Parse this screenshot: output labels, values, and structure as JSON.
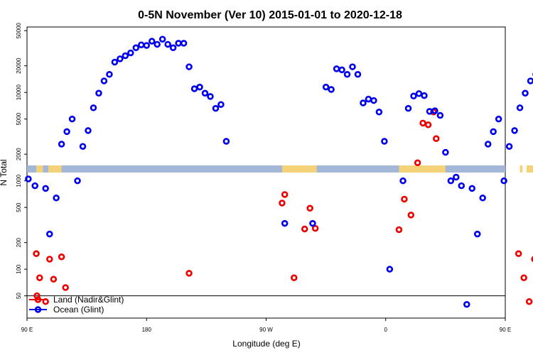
{
  "chart_data": {
    "type": "scatter",
    "title": "0-5N November (Ver 10)   2015-01-01 to 2020-12-18",
    "xlabel": "Longitude (deg E)",
    "ylabel": "N Total",
    "x_range_deg_e": [
      90,
      450
    ],
    "y_range": [
      28,
      55000
    ],
    "y_scale": "log",
    "x_ticks": [
      {
        "value": 90,
        "label": "90 E"
      },
      {
        "value": 180,
        "label": "180"
      },
      {
        "value": 270,
        "label": "90 W"
      },
      {
        "value": 360,
        "label": "0"
      },
      {
        "value": 450,
        "label": "90 E"
      },
      {
        "value": 540,
        "label": "180"
      }
    ],
    "y_ticks": [
      {
        "value": 50,
        "label": "50"
      },
      {
        "value": 100,
        "label": "100"
      },
      {
        "value": 200,
        "label": "200"
      },
      {
        "value": 500,
        "label": "500"
      },
      {
        "value": 1000,
        "label": "1000"
      },
      {
        "value": 2000,
        "label": "2000"
      },
      {
        "value": 5000,
        "label": "5000"
      },
      {
        "value": 10000,
        "label": "10000"
      },
      {
        "value": 20000,
        "label": "20000"
      },
      {
        "value": 50000,
        "label": "50000"
      }
    ],
    "reference_line_y": 50,
    "land_band": {
      "color_ocean": "#a3b8d8",
      "color_land": "#f5d27a",
      "land_segments_deg_e": [
        [
          97,
          102
        ],
        [
          106,
          116
        ],
        [
          282,
          308
        ],
        [
          370,
          405
        ],
        [
          461,
          463
        ],
        [
          466,
          472
        ],
        [
          474,
          476
        ]
      ]
    },
    "legend_position": "bottom-left",
    "series": [
      {
        "name": "Land (Nadir&Glint)",
        "color": "#ee0000",
        "points": [
          [
            97,
            150
          ],
          [
            97.5,
            50
          ],
          [
            99.5,
            80
          ],
          [
            104,
            43
          ],
          [
            107,
            130
          ],
          [
            110,
            77
          ],
          [
            116,
            138
          ],
          [
            119,
            62
          ],
          [
            212,
            90
          ],
          [
            282,
            560
          ],
          [
            284,
            700
          ],
          [
            291,
            80
          ],
          [
            299,
            285
          ],
          [
            303,
            490
          ],
          [
            307,
            290
          ],
          [
            370,
            280
          ],
          [
            374,
            620
          ],
          [
            379,
            410
          ],
          [
            384,
            1600
          ],
          [
            388,
            4500
          ],
          [
            392,
            4300
          ],
          [
            396,
            6000
          ],
          [
            398,
            3000
          ],
          [
            460,
            150
          ],
          [
            464,
            80
          ],
          [
            468,
            43
          ],
          [
            472,
            130
          ],
          [
            476,
            77
          ],
          [
            480,
            138
          ],
          [
            484,
            62
          ]
        ]
      },
      {
        "name": "Ocean (Glint)",
        "color": "#0000ee",
        "points": [
          [
            91,
            1050
          ],
          [
            96,
            880
          ],
          [
            104,
            820
          ],
          [
            107,
            250
          ],
          [
            112,
            640
          ],
          [
            116,
            2600
          ],
          [
            120,
            3600
          ],
          [
            124,
            5000
          ],
          [
            128,
            1000
          ],
          [
            132,
            2450
          ],
          [
            136,
            3700
          ],
          [
            140,
            6700
          ],
          [
            144,
            9800
          ],
          [
            148,
            13500
          ],
          [
            152,
            16000
          ],
          [
            156,
            22000
          ],
          [
            160,
            24000
          ],
          [
            164,
            26000
          ],
          [
            168,
            28000
          ],
          [
            172,
            32000
          ],
          [
            176,
            34500
          ],
          [
            180,
            34000
          ],
          [
            184,
            38000
          ],
          [
            188,
            35000
          ],
          [
            192,
            40000
          ],
          [
            196,
            35000
          ],
          [
            200,
            32000
          ],
          [
            204,
            36000
          ],
          [
            208,
            36000
          ],
          [
            212,
            19500
          ],
          [
            216,
            11000
          ],
          [
            220,
            11500
          ],
          [
            224,
            9800
          ],
          [
            228,
            9000
          ],
          [
            232,
            6600
          ],
          [
            236,
            7300
          ],
          [
            240,
            2800
          ],
          [
            284,
            330
          ],
          [
            305,
            330
          ],
          [
            315,
            11500
          ],
          [
            319,
            10800
          ],
          [
            323,
            18500
          ],
          [
            327,
            18000
          ],
          [
            331,
            16000
          ],
          [
            335,
            19500
          ],
          [
            339,
            16000
          ],
          [
            343,
            7600
          ],
          [
            347,
            8400
          ],
          [
            351,
            8100
          ],
          [
            355,
            6000
          ],
          [
            359,
            2800
          ],
          [
            363,
            100
          ],
          [
            373,
            1000
          ],
          [
            377,
            6600
          ],
          [
            381,
            9100
          ],
          [
            385,
            9700
          ],
          [
            389,
            9200
          ],
          [
            393,
            6100
          ],
          [
            397,
            6200
          ],
          [
            401,
            5500
          ],
          [
            405,
            2100
          ],
          [
            409,
            1000
          ],
          [
            413,
            1100
          ],
          [
            417,
            880
          ],
          [
            421,
            40
          ],
          [
            425,
            820
          ],
          [
            429,
            250
          ],
          [
            433,
            640
          ],
          [
            437,
            2600
          ],
          [
            441,
            3600
          ],
          [
            445,
            5000
          ],
          [
            449,
            1000
          ],
          [
            453,
            2450
          ],
          [
            457,
            3700
          ],
          [
            461,
            6700
          ],
          [
            465,
            9800
          ],
          [
            469,
            13500
          ],
          [
            473,
            16000
          ],
          [
            477,
            22000
          ],
          [
            481,
            24000
          ]
        ]
      }
    ]
  }
}
